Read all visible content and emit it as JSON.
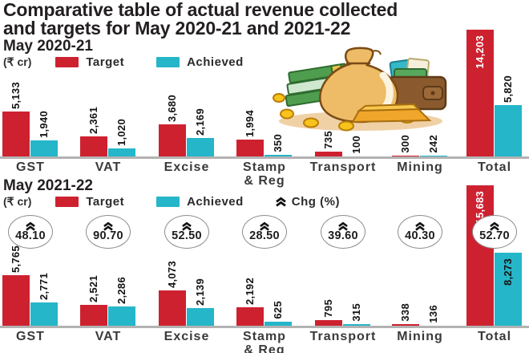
{
  "page_title": {
    "line1": "Comparative table of actual revenue collected",
    "line2": "and targets for May 2020-21 and 2021-22"
  },
  "colors": {
    "target": "#ce2130",
    "achieved": "#25b6c9",
    "axis_line": "#b3b3b3",
    "title_text": "#231f20",
    "category_text": "#3a3a3a",
    "circle_border": "#8c8c8c"
  },
  "icons": {
    "change": "double-chevron-up-icon",
    "illustration": "money-bag-illustration"
  },
  "chart_data": [
    {
      "type": "bar",
      "title": "May 2020-21",
      "unit": "(₹ cr)",
      "legend": [
        "Target",
        "Achieved"
      ],
      "legend_position": "top",
      "grid": false,
      "categories": [
        "GST",
        "VAT",
        "Excise",
        "Stamp & Reg",
        "Transport",
        "Mining",
        "Total"
      ],
      "series": [
        {
          "name": "Target",
          "values": [
            5133,
            2361,
            3680,
            1994,
            735,
            300,
            14203
          ],
          "labels": [
            "5,133",
            "2,361",
            "3,680",
            "1,994",
            "735",
            "300",
            "14,203"
          ]
        },
        {
          "name": "Achieved",
          "values": [
            1940,
            1020,
            2169,
            350,
            100,
            242,
            5820
          ],
          "labels": [
            "1,940",
            "1,020",
            "2,169",
            "350",
            "100",
            "242",
            "5,820"
          ]
        }
      ]
    },
    {
      "type": "bar",
      "title": "May 2021-22",
      "unit": "(₹ cr)",
      "legend": [
        "Target",
        "Achieved"
      ],
      "legend_position": "top",
      "grid": false,
      "change_legend": "Chg (%)",
      "categories": [
        "GST",
        "VAT",
        "Excise",
        "Stamp & Reg",
        "Transport",
        "Mining",
        "Total"
      ],
      "series": [
        {
          "name": "Target",
          "values": [
            5765,
            2521,
            4073,
            2192,
            795,
            338,
            15683
          ],
          "labels": [
            "5,765",
            "2,521",
            "4,073",
            "2,192",
            "795",
            "338",
            "15,683"
          ]
        },
        {
          "name": "Achieved",
          "values": [
            2771,
            2286,
            2139,
            625,
            315,
            136,
            8273
          ],
          "labels": [
            "2,771",
            "2,286",
            "2,139",
            "625",
            "315",
            "136",
            "8,273"
          ]
        }
      ],
      "change_pct": [
        "48.10",
        "90.70",
        "52.50",
        "28.50",
        "39.60",
        "40.30",
        "52.70"
      ]
    }
  ]
}
